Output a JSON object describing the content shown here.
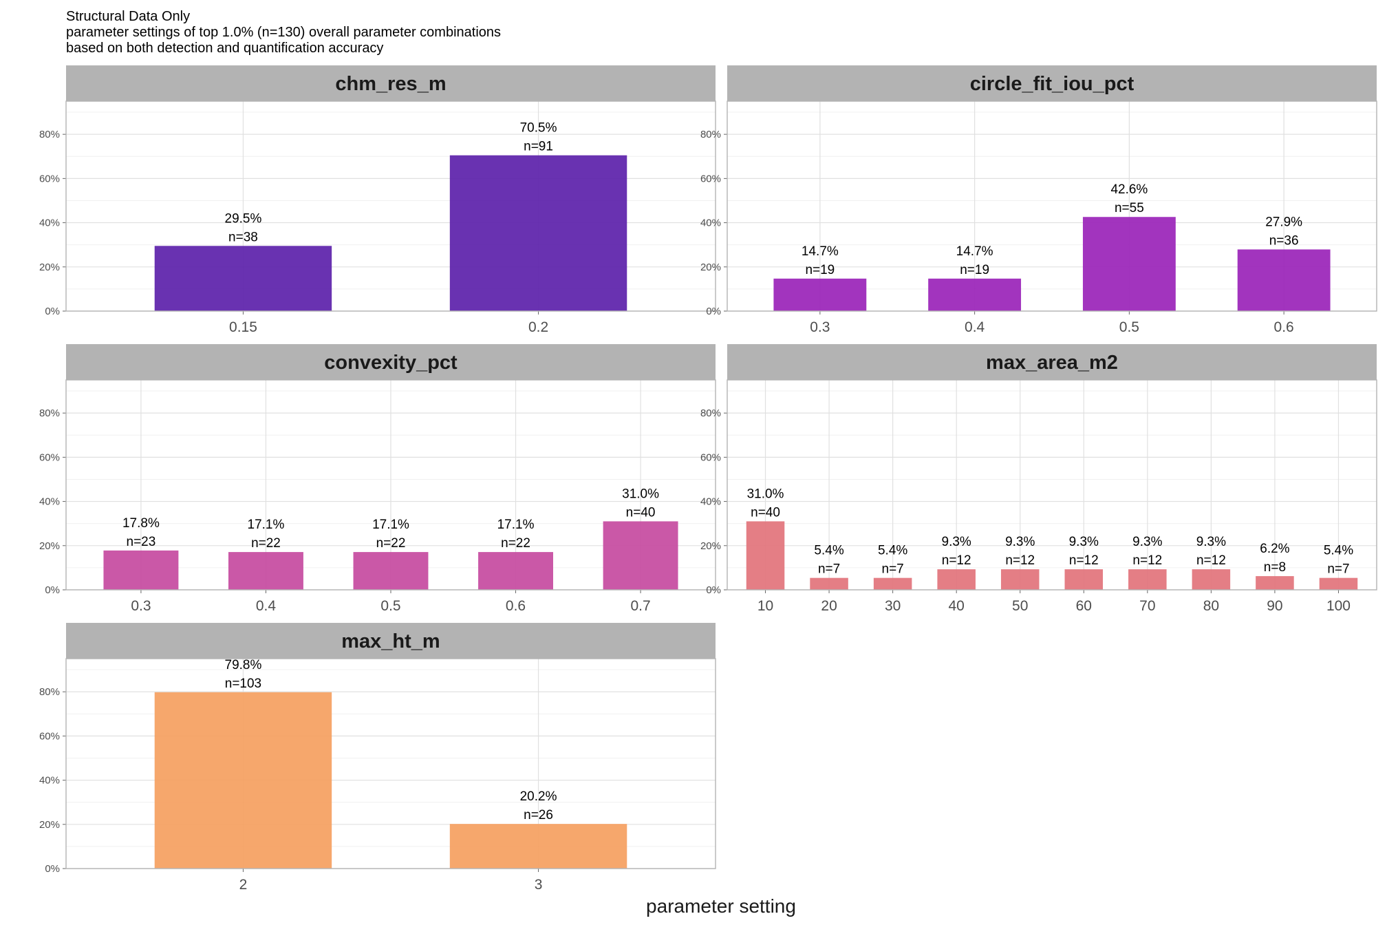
{
  "title_lines": [
    "Structural Data Only",
    "parameter settings of top 1.0% (n=130) overall parameter combinations",
    "based on both detection and quantification accuracy"
  ],
  "xlabel": "parameter setting",
  "chart_data": {
    "type": "bar",
    "facet_layout": "2 columns, 3 rows",
    "ylim": [
      0,
      0.95
    ],
    "y_ticks": [
      "0%",
      "20%",
      "40%",
      "60%",
      "80%"
    ],
    "y_tick_values": [
      0,
      0.2,
      0.4,
      0.6,
      0.8
    ],
    "grid": true,
    "legend": "none",
    "panels": [
      {
        "name": "chm_res_m",
        "color": "#5c21aa",
        "categories": [
          "0.15",
          "0.2"
        ],
        "values": [
          0.295,
          0.705
        ],
        "value_labels": [
          "29.5%",
          "70.5%"
        ],
        "count_labels": [
          "n=38",
          "n=91"
        ]
      },
      {
        "name": "circle_fit_iou_pct",
        "color": "#9a23b8",
        "categories": [
          "0.3",
          "0.4",
          "0.5",
          "0.6"
        ],
        "values": [
          0.147,
          0.147,
          0.426,
          0.279
        ],
        "value_labels": [
          "14.7%",
          "14.7%",
          "42.6%",
          "27.9%"
        ],
        "count_labels": [
          "n=19",
          "n=19",
          "n=55",
          "n=36"
        ]
      },
      {
        "name": "convexity_pct",
        "color": "#c64a9f",
        "categories": [
          "0.3",
          "0.4",
          "0.5",
          "0.6",
          "0.7"
        ],
        "values": [
          0.178,
          0.171,
          0.171,
          0.171,
          0.31
        ],
        "value_labels": [
          "17.8%",
          "17.1%",
          "17.1%",
          "17.1%",
          "31.0%"
        ],
        "count_labels": [
          "n=23",
          "n=22",
          "n=22",
          "n=22",
          "n=40"
        ]
      },
      {
        "name": "max_area_m2",
        "color": "#e2737b",
        "categories": [
          "10",
          "20",
          "30",
          "40",
          "50",
          "60",
          "70",
          "80",
          "90",
          "100"
        ],
        "values": [
          0.31,
          0.054,
          0.054,
          0.093,
          0.093,
          0.093,
          0.093,
          0.093,
          0.062,
          0.054
        ],
        "value_labels": [
          "31.0%",
          "5.4%",
          "5.4%",
          "9.3%",
          "9.3%",
          "9.3%",
          "9.3%",
          "9.3%",
          "6.2%",
          "5.4%"
        ],
        "count_labels": [
          "n=40",
          "n=7",
          "n=7",
          "n=12",
          "n=12",
          "n=12",
          "n=12",
          "n=12",
          "n=8",
          "n=7"
        ]
      },
      {
        "name": "max_ht_m",
        "color": "#f5a060",
        "categories": [
          "2",
          "3"
        ],
        "values": [
          0.798,
          0.202
        ],
        "value_labels": [
          "79.8%",
          "20.2%"
        ],
        "count_labels": [
          "n=103",
          "n=26"
        ]
      }
    ]
  }
}
